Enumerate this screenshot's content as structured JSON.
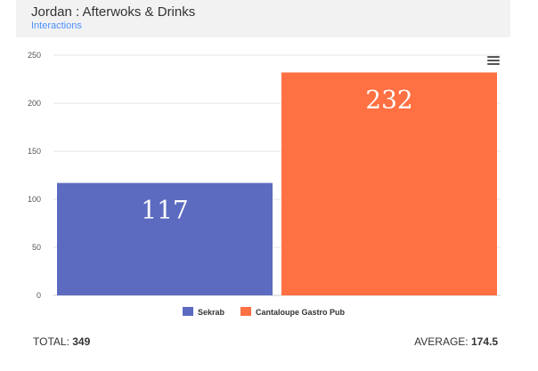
{
  "header": {
    "title": "Jordan : Afterwoks & Drinks",
    "subtitle": "Interactions"
  },
  "chart_data": {
    "type": "bar",
    "categories": [
      "Sekrab",
      "Cantaloupe Gastro Pub"
    ],
    "values": [
      117,
      232
    ],
    "data_labels": [
      "117",
      "232"
    ],
    "colors": [
      "#5c6bc0",
      "#ff7043"
    ],
    "ylim": [
      0,
      250
    ],
    "yticks": [
      0,
      50,
      100,
      150,
      200,
      250
    ],
    "grid": true,
    "legend": "bottom",
    "title": "",
    "xlabel": "",
    "ylabel": ""
  },
  "footer": {
    "total_label": "TOTAL:",
    "total_value": "349",
    "average_label": "AVERAGE:",
    "average_value": "174.5"
  }
}
